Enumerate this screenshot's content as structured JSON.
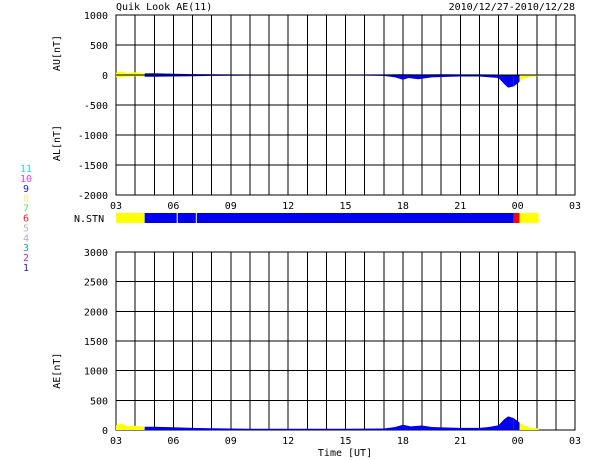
{
  "header": {
    "title": "Quik Look AE(11)",
    "date_range": "2010/12/27-2010/12/28"
  },
  "colors": {
    "active": "#0000ee",
    "quiet": "#ffff00",
    "alert": "#ff0000",
    "grid": "#000000"
  },
  "station_legend": [
    {
      "label": "11",
      "color": "#22dddd"
    },
    {
      "label": "10",
      "color": "#ff33ff"
    },
    {
      "label": "9",
      "color": "#2222cc"
    },
    {
      "label": "8",
      "color": "#eeee88"
    },
    {
      "label": "7",
      "color": "#66dd66"
    },
    {
      "label": "6",
      "color": "#ee2222"
    },
    {
      "label": "5",
      "color": "#bbbbbb"
    },
    {
      "label": "4",
      "color": "#aaaacc"
    },
    {
      "label": "3",
      "color": "#22aaaa"
    },
    {
      "label": "2",
      "color": "#cc22cc"
    },
    {
      "label": "1",
      "color": "#2222dd"
    }
  ],
  "chart_data": [
    {
      "type": "area",
      "name": "au-al-panel",
      "ylabel_upper": "AU[nT]",
      "ylabel_lower": "AL[nT]",
      "xlim": [
        3,
        27
      ],
      "ylim": [
        -2000,
        1000
      ],
      "yticks": [
        1000,
        500,
        0,
        -500,
        -1000,
        -1500,
        -2000
      ],
      "xticks": [
        "03",
        "06",
        "09",
        "12",
        "15",
        "18",
        "21",
        "00",
        "03"
      ],
      "data_end": 25.3,
      "au": [
        [
          3,
          40
        ],
        [
          3.3,
          60
        ],
        [
          3.6,
          30
        ],
        [
          4,
          45
        ],
        [
          4.4,
          25
        ],
        [
          5,
          30
        ],
        [
          6,
          20
        ],
        [
          7,
          15
        ],
        [
          9,
          10
        ],
        [
          12,
          8
        ],
        [
          15,
          8
        ],
        [
          17,
          10
        ],
        [
          18,
          12
        ],
        [
          19,
          10
        ],
        [
          20,
          12
        ],
        [
          21,
          10
        ],
        [
          22,
          10
        ],
        [
          23,
          8
        ],
        [
          24,
          6
        ],
        [
          25,
          10
        ],
        [
          25.3,
          5
        ]
      ],
      "al": [
        [
          3,
          -40
        ],
        [
          3.5,
          -30
        ],
        [
          4,
          -20
        ],
        [
          4.5,
          -30
        ],
        [
          5,
          -30
        ],
        [
          6,
          -25
        ],
        [
          7,
          -20
        ],
        [
          8,
          -15
        ],
        [
          9,
          -12
        ],
        [
          10,
          -10
        ],
        [
          11,
          -10
        ],
        [
          12,
          -10
        ],
        [
          13,
          -10
        ],
        [
          14,
          -10
        ],
        [
          15,
          -10
        ],
        [
          16,
          -10
        ],
        [
          17,
          -15
        ],
        [
          17.6,
          -40
        ],
        [
          18,
          -80
        ],
        [
          18.3,
          -50
        ],
        [
          18.8,
          -70
        ],
        [
          19.5,
          -40
        ],
        [
          20.5,
          -30
        ],
        [
          21,
          -25
        ],
        [
          22,
          -25
        ],
        [
          23,
          -50
        ],
        [
          23.3,
          -150
        ],
        [
          23.5,
          -210
        ],
        [
          23.8,
          -190
        ],
        [
          24,
          -140
        ],
        [
          24.3,
          -60
        ],
        [
          24.7,
          -30
        ],
        [
          25,
          -20
        ],
        [
          25.3,
          -5
        ]
      ]
    },
    {
      "type": "area",
      "name": "ae-panel",
      "ylabel": "AE[nT]",
      "xlabel": "Time [UT]",
      "xlim": [
        3,
        27
      ],
      "ylim": [
        0,
        3000
      ],
      "yticks": [
        3000,
        2500,
        2000,
        1500,
        1000,
        500,
        0
      ],
      "xticks": [
        "03",
        "06",
        "09",
        "12",
        "15",
        "18",
        "21",
        "00",
        "03"
      ],
      "ae": [
        [
          3,
          80
        ],
        [
          3.3,
          110
        ],
        [
          3.6,
          60
        ],
        [
          4,
          70
        ],
        [
          4.4,
          55
        ],
        [
          5,
          55
        ],
        [
          6,
          45
        ],
        [
          7,
          35
        ],
        [
          8,
          30
        ],
        [
          9,
          25
        ],
        [
          10,
          20
        ],
        [
          12,
          20
        ],
        [
          15,
          20
        ],
        [
          17,
          25
        ],
        [
          17.6,
          50
        ],
        [
          18,
          90
        ],
        [
          18.4,
          60
        ],
        [
          19,
          75
        ],
        [
          19.5,
          50
        ],
        [
          20.5,
          40
        ],
        [
          21,
          35
        ],
        [
          22,
          35
        ],
        [
          22.5,
          50
        ],
        [
          23,
          80
        ],
        [
          23.3,
          180
        ],
        [
          23.5,
          230
        ],
        [
          23.8,
          200
        ],
        [
          24,
          150
        ],
        [
          24.3,
          80
        ],
        [
          24.7,
          40
        ],
        [
          25,
          30
        ],
        [
          25.3,
          10
        ]
      ]
    }
  ],
  "station_bar": {
    "label": "N.STN",
    "segments": [
      {
        "start": 3,
        "end": 4.5,
        "value": "quiet"
      },
      {
        "start": 4.5,
        "end": 23.8,
        "value": "active"
      },
      {
        "start": 23.8,
        "end": 24.1,
        "value": "alert"
      },
      {
        "start": 24.1,
        "end": 25.1,
        "value": "quiet"
      }
    ]
  }
}
